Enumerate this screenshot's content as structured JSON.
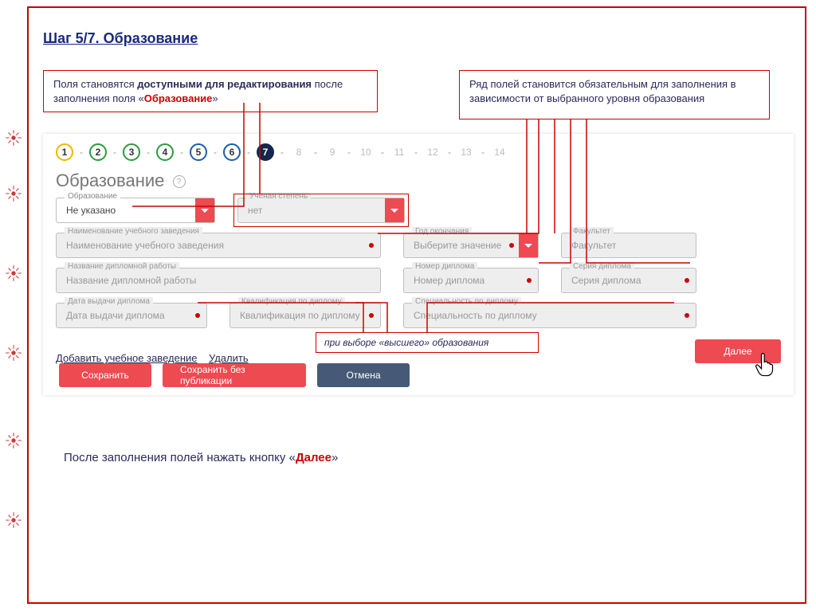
{
  "page_title": "Шаг 5/7.  Образование",
  "callouts": {
    "left_pre": "Поля становятся ",
    "left_bold": "доступными для редактирования",
    "left_mid": " после заполнения поля «",
    "left_red": "Образование",
    "left_post": "»",
    "right": "Ряд полей становится обязательным для заполнения  в зависимости от выбранного уровня образования",
    "mid": "при выборе «высшего» образования"
  },
  "stepper": {
    "active_colors": [
      "#f2b700",
      "#2e9b3e",
      "#2e9b3e",
      "#2e9b3e",
      "#1a5fa6",
      "#1a5fa6",
      "#14274e"
    ],
    "filled_index": 6,
    "done": [
      "1",
      "2",
      "3",
      "4",
      "5",
      "6",
      "7"
    ],
    "future": [
      "8",
      "9",
      "10",
      "11",
      "12",
      "13",
      "14"
    ]
  },
  "section": {
    "title": "Образование",
    "help": "?"
  },
  "fields": {
    "education": {
      "label": "Образование",
      "value": "Не указано"
    },
    "degree": {
      "label": "Ученая степень",
      "value": "нет"
    },
    "institution": {
      "label": "Наименование учебного заведения",
      "placeholder": "Наименование учебного заведения"
    },
    "gradyear": {
      "label": "Год окончания",
      "placeholder": "Выберите значение"
    },
    "faculty": {
      "label": "Факультет",
      "placeholder": "Факультет"
    },
    "thesis": {
      "label": "Название дипломной работы",
      "placeholder": "Название дипломной работы"
    },
    "diploma_no": {
      "label": "Номер диплома",
      "placeholder": "Номер диплома"
    },
    "diploma_ser": {
      "label": "Серия диплома",
      "placeholder": "Серия диплома"
    },
    "issue_date": {
      "label": "Дата выдачи диплома",
      "placeholder": "Дата выдачи диплома"
    },
    "qualification": {
      "label": "Квалификация по диплому",
      "placeholder": "Квалификация по диплому"
    },
    "specialty": {
      "label": "Специальность по диплому",
      "placeholder": "Специальность по диплому"
    }
  },
  "links": {
    "add": "Добавить учебное заведение",
    "delete": "Удалить"
  },
  "buttons": {
    "save": "Сохранить",
    "save_draft": "Сохранить без публикации",
    "cancel": "Отмена",
    "next": "Далее"
  },
  "bottom_note_pre": "После заполнения полей нажать кнопку «",
  "bottom_note_hl": "Далее",
  "bottom_note_post": "»",
  "colors": {
    "accent_red": "#ee4a52",
    "annot_red": "#cc0000",
    "title_blue": "#1a2a7a",
    "cancel_blue": "#465a78"
  }
}
